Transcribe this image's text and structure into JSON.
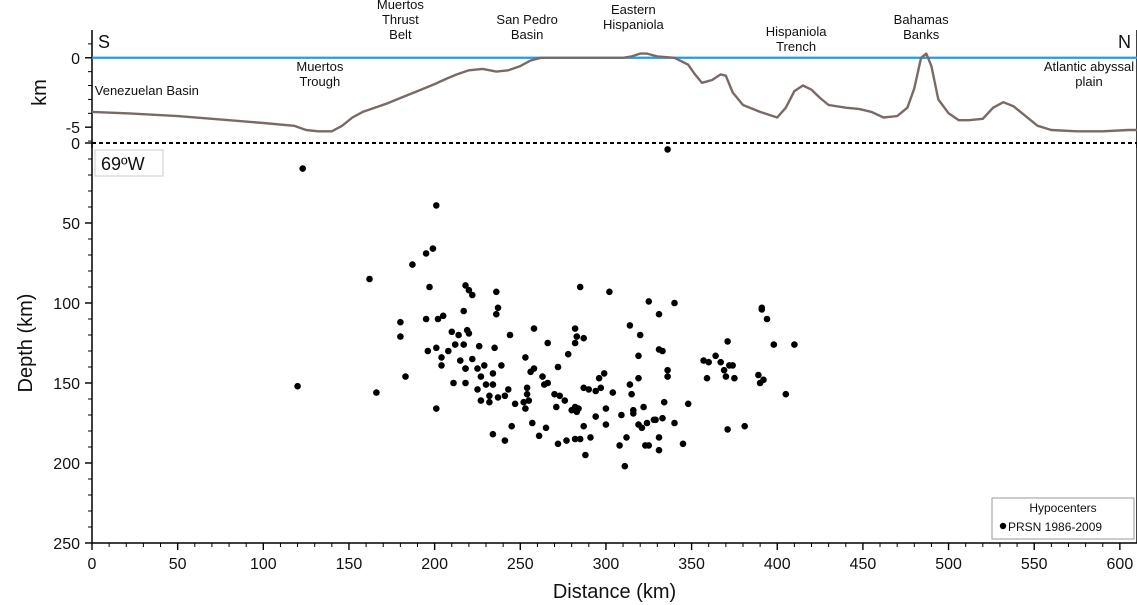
{
  "chart_data": [
    {
      "type": "line",
      "panel": "topographic-profile",
      "ylabel": "km",
      "xlim": [
        0,
        610
      ],
      "ylim": [
        -6.5,
        2
      ],
      "yticks": [
        0,
        -5
      ],
      "ytick_labels": [
        "0",
        "-5"
      ],
      "sea_level": 0,
      "colors": {
        "sea_level": "#1f9fe0",
        "profile": "#7a6a66"
      },
      "corner_labels": {
        "left": "S",
        "right": "N"
      },
      "features": [
        {
          "name": "Venezuelan Basin",
          "lines": [
            "Venezuelan Basin"
          ],
          "x": 32
        },
        {
          "name": "Muertos Trough",
          "lines": [
            "Muertos",
            "Trough"
          ],
          "x": 133
        },
        {
          "name": "Muertos Thrust Belt",
          "lines": [
            "Muertos",
            "Thrust",
            "Belt"
          ],
          "x": 180
        },
        {
          "name": "San Pedro Basin",
          "lines": [
            "San Pedro",
            "Basin"
          ],
          "x": 254
        },
        {
          "name": "Eastern Hispaniola",
          "lines": [
            "Eastern",
            "Hispaniola"
          ],
          "x": 316
        },
        {
          "name": "Hispaniola Trench",
          "lines": [
            "Hispaniola",
            "Trench"
          ],
          "x": 411
        },
        {
          "name": "Bahamas Banks",
          "lines": [
            "Bahamas",
            "Banks"
          ],
          "x": 484
        },
        {
          "name": "Atlantic abyssal plain",
          "lines": [
            "Atlantic abyssal",
            "plain"
          ],
          "x": 582
        }
      ],
      "series": [
        {
          "x": [
            0,
            20,
            50,
            80,
            100,
            118,
            125,
            132,
            140,
            146,
            152,
            158,
            165,
            172,
            180,
            190,
            200,
            207,
            213,
            220,
            228,
            236,
            243,
            250,
            256,
            262,
            270,
            280,
            290,
            300,
            310,
            315,
            320,
            324,
            330,
            340,
            348,
            352,
            356,
            362,
            367,
            370,
            374,
            380,
            390,
            400,
            405,
            410,
            415,
            420,
            425,
            430,
            440,
            448,
            455,
            462,
            470,
            476,
            480,
            484,
            487,
            490,
            494,
            500,
            506,
            512,
            520,
            526,
            532,
            538,
            545,
            552,
            560,
            575,
            590,
            605,
            610
          ],
          "y": [
            -3.9,
            -4.0,
            -4.2,
            -4.5,
            -4.7,
            -4.9,
            -5.2,
            -5.3,
            -5.3,
            -4.9,
            -4.3,
            -3.9,
            -3.6,
            -3.3,
            -2.9,
            -2.4,
            -1.9,
            -1.5,
            -1.2,
            -0.9,
            -0.8,
            -1.0,
            -0.9,
            -0.6,
            -0.2,
            0.0,
            0.0,
            0.0,
            0.0,
            0.0,
            0.0,
            0.1,
            0.3,
            0.3,
            0.1,
            0.0,
            -0.5,
            -1.2,
            -1.8,
            -1.6,
            -1.2,
            -1.3,
            -2.5,
            -3.4,
            -3.9,
            -4.3,
            -3.6,
            -2.4,
            -2.0,
            -2.3,
            -2.9,
            -3.4,
            -3.6,
            -3.7,
            -3.9,
            -4.3,
            -4.2,
            -3.6,
            -2.2,
            0.0,
            0.3,
            -0.6,
            -3.0,
            -4.0,
            -4.5,
            -4.5,
            -4.4,
            -3.6,
            -3.2,
            -3.5,
            -4.2,
            -4.9,
            -5.2,
            -5.3,
            -5.3,
            -5.2,
            -5.2
          ]
        }
      ]
    },
    {
      "type": "scatter",
      "panel": "hypocenter-depth-section",
      "xlabel": "Distance (km)",
      "ylabel": "Depth (km)",
      "xlim": [
        0,
        610
      ],
      "ylim": [
        250,
        0
      ],
      "xticks": [
        0,
        50,
        100,
        150,
        200,
        250,
        300,
        350,
        400,
        450,
        500,
        550,
        600
      ],
      "yticks": [
        0,
        50,
        100,
        150,
        200,
        250
      ],
      "annotation": "69ºW",
      "legend": {
        "title": "Hypocenters",
        "entry": "PRSN 1986-2009",
        "position": "bottom-right"
      },
      "colors": {
        "points": "#000000"
      },
      "series": [
        {
          "name": "PRSN 1986-2009",
          "points": [
            [
              336,
              4
            ],
            [
              123,
              16
            ],
            [
              201,
              39
            ],
            [
              199,
              66
            ],
            [
              195,
              69
            ],
            [
              187,
              76
            ],
            [
              162,
              85
            ],
            [
              218,
              89
            ],
            [
              197,
              90
            ],
            [
              285,
              90
            ],
            [
              220,
              92
            ],
            [
              236,
              93
            ],
            [
              222,
              95
            ],
            [
              302,
              93
            ],
            [
              325,
              99
            ],
            [
              340,
              100
            ],
            [
              237,
              103
            ],
            [
              236,
              107
            ],
            [
              331,
              107
            ],
            [
              217,
              105
            ],
            [
              205,
              108
            ],
            [
              202,
              110
            ],
            [
              391,
              103
            ],
            [
              391,
              104
            ],
            [
              195,
              110
            ],
            [
              394,
              110
            ],
            [
              180,
              112
            ],
            [
              314,
              114
            ],
            [
              219,
              117
            ],
            [
              220,
              119
            ],
            [
              258,
              116
            ],
            [
              282,
              116
            ],
            [
              320,
              120
            ],
            [
              214,
              120
            ],
            [
              210,
              118
            ],
            [
              283,
              121
            ],
            [
              244,
              120
            ],
            [
              287,
              122
            ],
            [
              217,
              126
            ],
            [
              282,
              125
            ],
            [
              371,
              124
            ],
            [
              398,
              126
            ],
            [
              410,
              126
            ],
            [
              212,
              126
            ],
            [
              266,
              125
            ],
            [
              180,
              121
            ],
            [
              201,
              128
            ],
            [
              226,
              127
            ],
            [
              208,
              130
            ],
            [
              235,
              128
            ],
            [
              278,
              132
            ],
            [
              333,
              130
            ],
            [
              331,
              129
            ],
            [
              196,
              130
            ],
            [
              204,
              134
            ],
            [
              222,
              135
            ],
            [
              253,
              134
            ],
            [
              319,
              133
            ],
            [
              364,
              133
            ],
            [
              215,
              136
            ],
            [
              229,
              139
            ],
            [
              218,
              141
            ],
            [
              239,
              139
            ],
            [
              256,
              143
            ],
            [
              225,
              141
            ],
            [
              336,
              142
            ],
            [
              258,
              141
            ],
            [
              357,
              136
            ],
            [
              360,
              137
            ],
            [
              272,
              140
            ],
            [
              204,
              139
            ],
            [
              218,
              141
            ],
            [
              367,
              137
            ],
            [
              372,
              139
            ],
            [
              374,
              139
            ],
            [
              296,
              147
            ],
            [
              369,
              142
            ],
            [
              234,
              144
            ],
            [
              263,
              146
            ],
            [
              227,
              146
            ],
            [
              359,
              147
            ],
            [
              299,
              144
            ],
            [
              319,
              147
            ],
            [
              336,
              146
            ],
            [
              370,
              146
            ],
            [
              183,
              146
            ],
            [
              389,
              145
            ],
            [
              375,
              147
            ],
            [
              211,
              150
            ],
            [
              392,
              148
            ],
            [
              390,
              150
            ],
            [
              218,
              150
            ],
            [
              230,
              151
            ],
            [
              234,
              151
            ],
            [
              243,
              154
            ],
            [
              254,
              153
            ],
            [
              264,
              151
            ],
            [
              254,
              157
            ],
            [
              241,
              158
            ],
            [
              314,
              151
            ],
            [
              287,
              153
            ],
            [
              304,
              156
            ],
            [
              266,
              150
            ],
            [
              270,
              157
            ],
            [
              297,
              153
            ],
            [
              273,
              158
            ],
            [
              237,
              159
            ],
            [
              232,
              158
            ],
            [
              120,
              152
            ],
            [
              225,
              154
            ],
            [
              232,
              162
            ],
            [
              227,
              161
            ],
            [
              290,
              154
            ],
            [
              276,
              161
            ],
            [
              294,
              155
            ],
            [
              166,
              156
            ],
            [
              405,
              157
            ],
            [
              315,
              157
            ],
            [
              255,
              161
            ],
            [
              247,
              163
            ],
            [
              252,
              162
            ],
            [
              201,
              166
            ],
            [
              322,
              165
            ],
            [
              348,
              163
            ],
            [
              282,
              165
            ],
            [
              253,
              166
            ],
            [
              316,
              167
            ],
            [
              334,
              162
            ],
            [
              271,
              165
            ],
            [
              280,
              167
            ],
            [
              283,
              168
            ],
            [
              284,
              166
            ],
            [
              300,
              166
            ],
            [
              316,
              169
            ],
            [
              329,
              173
            ],
            [
              324,
              175
            ],
            [
              309,
              170
            ],
            [
              333,
              172
            ],
            [
              319,
              176
            ],
            [
              294,
              171
            ],
            [
              328,
              173
            ],
            [
              321,
              178
            ],
            [
              287,
              177
            ],
            [
              245,
              177
            ],
            [
              257,
              175
            ],
            [
              300,
              176
            ],
            [
              265,
              178
            ],
            [
              340,
              175
            ],
            [
              371,
              179
            ],
            [
              381,
              177
            ],
            [
              234,
              182
            ],
            [
              261,
              183
            ],
            [
              291,
              184
            ],
            [
              282,
              185
            ],
            [
              312,
              184
            ],
            [
              331,
              184
            ],
            [
              345,
              188
            ],
            [
              277,
              186
            ],
            [
              285,
              185
            ],
            [
              241,
              186
            ],
            [
              272,
              188
            ],
            [
              325,
              189
            ],
            [
              308,
              189
            ],
            [
              323,
              189
            ],
            [
              331,
              192
            ],
            [
              288,
              195
            ],
            [
              311,
              202
            ]
          ]
        }
      ]
    }
  ]
}
